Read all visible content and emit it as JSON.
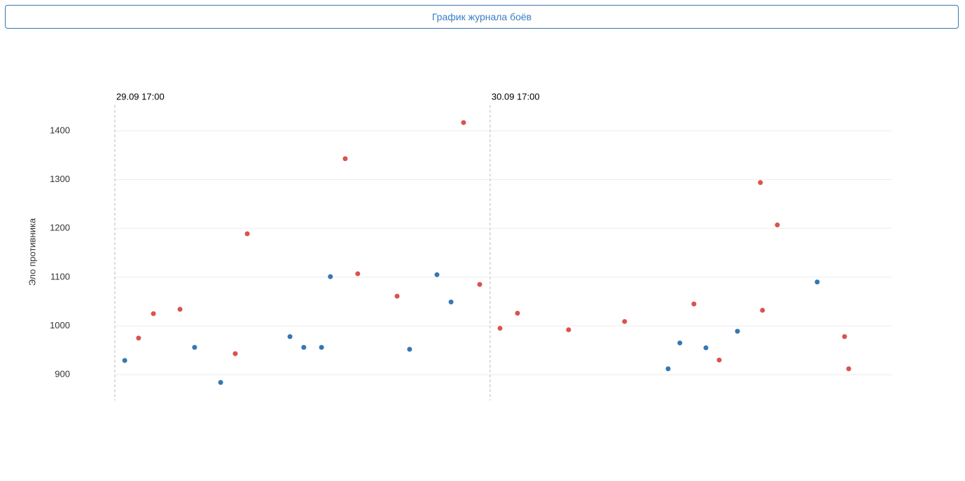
{
  "header": {
    "button": "График журнала боёв"
  },
  "chart_data": {
    "type": "scatter",
    "ylabel": "Эло противника",
    "xlim": [
      "29.09 17:00",
      "01.10 18:40"
    ],
    "xticks": [
      "29.09 17:00",
      "30.09 17:00"
    ],
    "ylim": [
      847,
      1453
    ],
    "yticks": [
      900,
      1000,
      1100,
      1200,
      1300,
      1400
    ],
    "grid": true,
    "series": [
      {
        "color": "#3478b4",
        "x": [
          "29.09 17:38",
          "29.09 22:06",
          "29.09 23:46",
          "30.09 04:12",
          "30.09 05:05",
          "30.09 06:13",
          "30.09 06:47",
          "30.09 11:51",
          "30.09 13:36",
          "30.09 14:30",
          "01.10 04:23",
          "01.10 05:08",
          "01.10 06:48",
          "01.10 08:49",
          "01.10 13:55"
        ],
        "values": [
          929,
          956,
          884,
          978,
          956,
          956,
          1101,
          952,
          1105,
          1049,
          912,
          965,
          955,
          989,
          1090
        ]
      },
      {
        "color": "#d9534f",
        "x": [
          "29.09 18:31",
          "29.09 19:28",
          "29.09 21:10",
          "30.09 00:42",
          "30.09 01:28",
          "30.09 07:44",
          "30.09 08:32",
          "30.09 11:03",
          "30.09 15:18",
          "30.09 16:20",
          "30.09 17:38",
          "30.09 18:45",
          "30.09 22:01",
          "01.10 01:36",
          "01.10 06:02",
          "01.10 07:39",
          "01.10 10:17",
          "01.10 10:25",
          "01.10 11:22",
          "01.10 15:40",
          "01.10 15:56"
        ],
        "values": [
          975,
          1025,
          1034,
          943,
          1189,
          1343,
          1107,
          1061,
          1417,
          1085,
          995,
          1026,
          992,
          1009,
          1045,
          930,
          1294,
          1032,
          1207,
          978,
          912
        ]
      }
    ]
  }
}
